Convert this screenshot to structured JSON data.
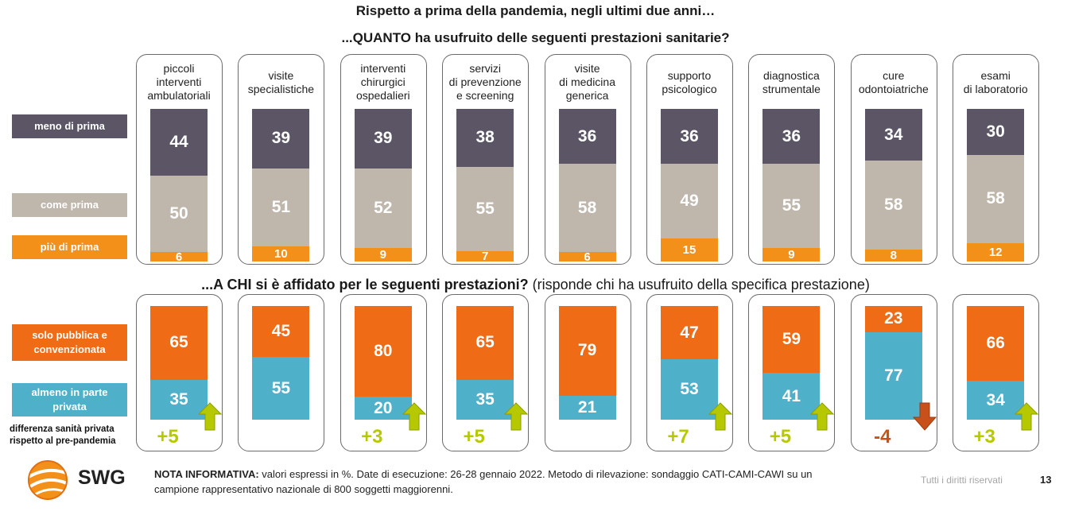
{
  "titles": {
    "line1": "Rispetto a prima della pandemia, negli ultimi due anni…",
    "line2": "...QUANTO ha usufruito delle seguenti prestazioni sanitarie?",
    "line3_bold": "...A CHI si è affidato per le seguenti prestazioni?",
    "line3_rest": " (risponde chi ha usufruito della specifica prestazione)"
  },
  "legend": {
    "meno": "meno di prima",
    "come": "come prima",
    "piu": "più di prima",
    "pubblica": "solo pubblica e convenzionata",
    "privata": "almeno in parte privata",
    "diff": "differenza sanità privata rispetto al pre-pandemia"
  },
  "colors": {
    "meno": "#5b5566",
    "come": "#bfb6ac",
    "piu": "#f39019",
    "pubblica": "#ef6b15",
    "privata": "#4fb0ca",
    "up": "#b6c900",
    "down": "#c8511b"
  },
  "chart_data": [
    {
      "type": "bar",
      "stacked": true,
      "categories": [
        "piccoli interventi ambulatoriali",
        "visite specialistiche",
        "interventi chirurgici ospedalieri",
        "servizi di prevenzione e screening",
        "visite di medicina generica",
        "supporto psicologico",
        "diagnostica strumentale",
        "cure odontoiatriche",
        "esami di laboratorio"
      ],
      "series": [
        {
          "name": "meno di prima",
          "values": [
            44,
            39,
            39,
            38,
            36,
            36,
            36,
            34,
            30
          ]
        },
        {
          "name": "come prima",
          "values": [
            50,
            51,
            52,
            55,
            58,
            49,
            55,
            58,
            58
          ]
        },
        {
          "name": "più di prima",
          "values": [
            6,
            10,
            9,
            7,
            6,
            15,
            9,
            8,
            12
          ]
        }
      ],
      "ylim": [
        0,
        100
      ]
    },
    {
      "type": "bar",
      "stacked": true,
      "categories": [
        "piccoli interventi ambulatoriali",
        "visite specialistiche",
        "interventi chirurgici ospedalieri",
        "servizi di prevenzione e screening",
        "visite di medicina generica",
        "supporto psicologico",
        "diagnostica strumentale",
        "cure odontoiatriche",
        "esami di laboratorio"
      ],
      "series": [
        {
          "name": "solo pubblica e convenzionata",
          "values": [
            65,
            45,
            80,
            65,
            79,
            47,
            59,
            23,
            66
          ]
        },
        {
          "name": "almeno in parte privata",
          "values": [
            35,
            55,
            20,
            35,
            21,
            53,
            41,
            77,
            34
          ]
        }
      ],
      "differenza": [
        "+5",
        "",
        "+3",
        "+5",
        "",
        "+7",
        "+5",
        "-4",
        "+3"
      ],
      "ylim": [
        0,
        100
      ]
    }
  ],
  "columns": [
    {
      "label": [
        "piccoli",
        "interventi",
        "ambulatoriali"
      ]
    },
    {
      "label": [
        "visite",
        "specialistiche"
      ]
    },
    {
      "label": [
        "interventi",
        "chirurgici",
        "ospedalieri"
      ]
    },
    {
      "label": [
        "servizi",
        "di prevenzione",
        "e screening"
      ]
    },
    {
      "label": [
        "visite",
        "di medicina",
        "generica"
      ]
    },
    {
      "label": [
        "supporto",
        "psicologico"
      ]
    },
    {
      "label": [
        "diagnostica",
        "strumentale"
      ]
    },
    {
      "label": [
        "cure",
        "odontoiatriche"
      ]
    },
    {
      "label": [
        "esami",
        "di laboratorio"
      ]
    }
  ],
  "footer": {
    "logo": "SWG",
    "note_bold": "NOTA INFORMATIVA:",
    "note_text": " valori espressi in %. Date di esecuzione: 26-28 gennaio 2022. Metodo di rilevazione: sondaggio CATI-CAMI-CAWI su un campione rappresentativo nazionale di 800 soggetti maggiorenni.",
    "rights": "Tutti i diritti riservati",
    "page": "13"
  }
}
